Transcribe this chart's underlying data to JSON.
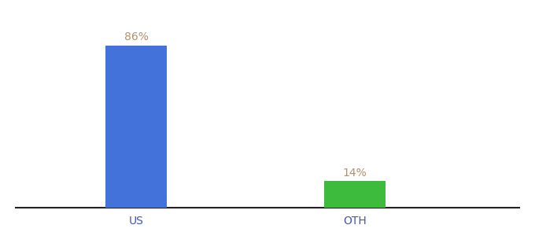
{
  "categories": [
    "US",
    "OTH"
  ],
  "values": [
    86,
    14
  ],
  "bar_colors": [
    "#4472db",
    "#3dbb3d"
  ],
  "label_texts": [
    "86%",
    "14%"
  ],
  "label_color": "#b09070",
  "ylim": [
    0,
    100
  ],
  "background_color": "#ffffff",
  "bar_width": 0.28,
  "label_fontsize": 10,
  "tick_fontsize": 10,
  "tick_color": "#4455aa",
  "spine_color": "#222222"
}
